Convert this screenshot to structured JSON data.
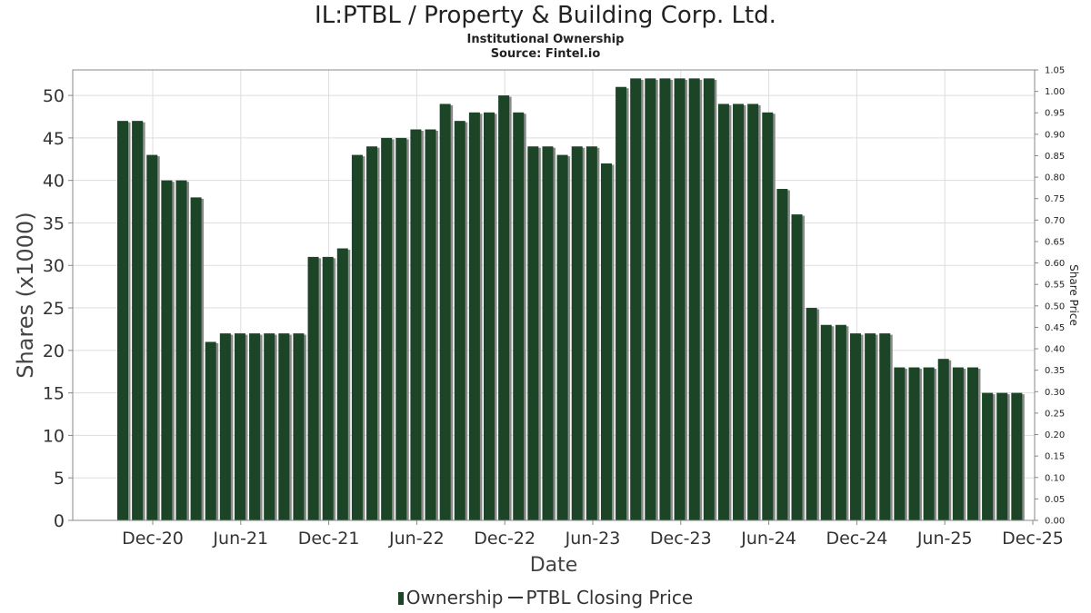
{
  "title": "IL:PTBL / Property & Building Corp. Ltd.",
  "subtitle": "Institutional Ownership",
  "source": "Source: Fintel.io",
  "colors": {
    "bar": "#1b4526",
    "bar_shadow": "#8a8a8a",
    "grid": "#dddddd",
    "axis": "#888888"
  },
  "chart_data": {
    "type": "bar",
    "title": "IL:PTBL / Property & Building Corp. Ltd.",
    "xlabel": "Date",
    "ylabel": "Shares (x1000)",
    "y2label": "Share Price",
    "ylim": [
      0,
      53
    ],
    "y2lim": [
      0,
      1.05
    ],
    "yticks": [
      0,
      5,
      10,
      15,
      20,
      25,
      30,
      35,
      40,
      45,
      50
    ],
    "y2ticks": [
      "0.00",
      "0.05",
      "0.10",
      "0.15",
      "0.20",
      "0.25",
      "0.30",
      "0.35",
      "0.40",
      "0.45",
      "0.50",
      "0.55",
      "0.60",
      "0.65",
      "0.70",
      "0.75",
      "0.80",
      "0.85",
      "0.90",
      "0.95",
      "1.00",
      "1.05"
    ],
    "xticks": [
      "Dec-20",
      "Jun-21",
      "Dec-21",
      "Jun-22",
      "Dec-22",
      "Jun-23",
      "Dec-23",
      "Jun-24",
      "Dec-24",
      "Jun-25",
      "Dec-25"
    ],
    "grid": true,
    "legend_position": "bottom",
    "series": [
      {
        "name": "Ownership",
        "values": [
          47,
          47,
          43,
          40,
          40,
          38,
          21,
          22,
          22,
          22,
          22,
          22,
          22,
          31,
          31,
          32,
          43,
          44,
          45,
          45,
          46,
          46,
          49,
          47,
          48,
          48,
          50,
          48,
          44,
          44,
          43,
          44,
          44,
          42,
          51,
          52,
          52,
          52,
          52,
          52,
          52,
          49,
          49,
          49,
          48,
          39,
          36,
          25,
          23,
          23,
          22,
          22,
          22,
          18,
          18,
          18,
          19,
          18,
          18,
          15,
          15,
          15
        ]
      },
      {
        "name": "PTBL Closing Price",
        "values": []
      }
    ]
  },
  "legend": {
    "ownership_label": "Ownership",
    "price_label": "PTBL Closing Price"
  }
}
